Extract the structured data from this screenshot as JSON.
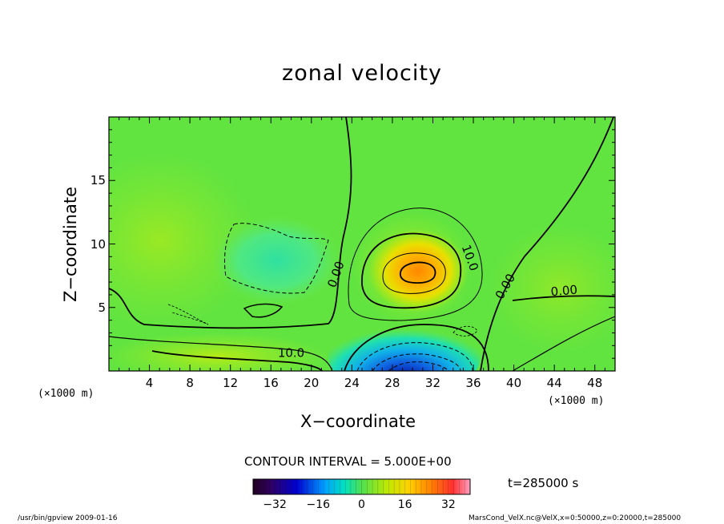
{
  "chart_data": {
    "type": "heatmap",
    "title": "zonal velocity",
    "xlabel": "X−coordinate",
    "ylabel": "Z−coordinate",
    "x_unit": "(×1000 m)",
    "y_unit": "(×1000 m)",
    "xlim": [
      0,
      50
    ],
    "ylim": [
      0,
      20
    ],
    "x_ticks": [
      "4",
      "8",
      "12",
      "16",
      "20",
      "24",
      "28",
      "32",
      "36",
      "40",
      "44",
      "48"
    ],
    "x_tick_values": [
      4,
      8,
      12,
      16,
      20,
      24,
      28,
      32,
      36,
      40,
      44,
      48
    ],
    "y_ticks": [
      "5",
      "10",
      "15"
    ],
    "y_tick_values": [
      5,
      10,
      15
    ],
    "contour_interval": "CONTOUR INTERVAL = 5.000E+00",
    "contour_labels": [
      {
        "text": "0.00",
        "x": 22.8,
        "y": 7.5
      },
      {
        "text": "10.0",
        "x": 35.3,
        "y": 8.8
      },
      {
        "text": "0.00",
        "x": 39.5,
        "y": 6.5
      },
      {
        "text": "0.00",
        "x": 45.0,
        "y": 6.0
      },
      {
        "text": "10.0",
        "x": 18.0,
        "y": 1.1
      }
    ],
    "features": [
      {
        "kind": "maximum",
        "x": 30.5,
        "z": 7.7,
        "value_approx": 20
      },
      {
        "kind": "minimum",
        "x": 29.5,
        "z": 0.3,
        "value_approx": -25
      },
      {
        "kind": "weak negative region",
        "x": 17,
        "z": 8.5,
        "value_approx": -3
      }
    ],
    "colorbar": {
      "range": [
        -40,
        40
      ],
      "ticks": [
        "−32",
        "−16",
        "0",
        "16",
        "32"
      ],
      "tick_values": [
        -32,
        -16,
        0,
        16,
        32
      ]
    },
    "time_label": "t=285000 s"
  },
  "footer": {
    "left": "/usr/bin/gpview   2009-01-16",
    "right": "MarsCond_VelX.nc@VelX,x=0:50000,z=0:20000,t=285000"
  }
}
